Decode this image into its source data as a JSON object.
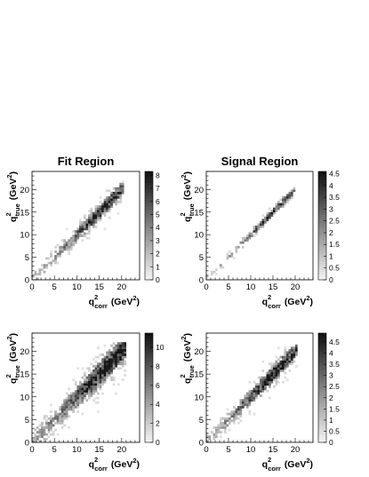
{
  "chart_data": [
    {
      "type": "heatmap",
      "title": "Fit Region",
      "xlabel": {
        "main": "q",
        "sub": "corr",
        "sup": "2",
        "unit_pre": "(GeV",
        "unit_sup": "2",
        "unit_post": ")"
      },
      "ylabel": {
        "main": "q",
        "sub": "true",
        "sup": "2",
        "unit_pre": "(GeV",
        "unit_sup": "2",
        "unit_post": ")"
      },
      "xlim": [
        0,
        24
      ],
      "ylim": [
        0,
        24
      ],
      "xticks": [
        0,
        5,
        10,
        15,
        20
      ],
      "yticks": [
        0,
        5,
        10,
        15,
        20
      ],
      "zlim": [
        0,
        8.3
      ],
      "zticks": [
        "0",
        "1",
        "2",
        "3",
        "4",
        "5",
        "6",
        "7",
        "8"
      ],
      "zvals": [
        0,
        1,
        2,
        3,
        4,
        5,
        6,
        7,
        8
      ],
      "grid": false,
      "distribution": {
        "diag_end": 20.5,
        "spread": 1.0,
        "tail": 0.18,
        "peak_at": 16,
        "density": 0.85
      }
    },
    {
      "type": "heatmap",
      "title": "Signal Region",
      "xlabel": {
        "main": "q",
        "sub": "corr",
        "sup": "2",
        "unit_pre": "(GeV",
        "unit_sup": "2",
        "unit_post": ")"
      },
      "ylabel": {
        "main": "q",
        "sub": "true",
        "sup": "2",
        "unit_pre": "(GeV",
        "unit_sup": "2",
        "unit_post": ")"
      },
      "xlim": [
        0,
        24
      ],
      "ylim": [
        0,
        24
      ],
      "xticks": [
        0,
        5,
        10,
        15,
        20
      ],
      "yticks": [
        0,
        5,
        10,
        15,
        20
      ],
      "zlim": [
        0,
        4.6
      ],
      "zticks": [
        "0",
        "0.5",
        "1",
        "1.5",
        "2",
        "2.5",
        "3",
        "3.5",
        "4",
        "4.5"
      ],
      "zvals": [
        0,
        0.5,
        1,
        1.5,
        2,
        2.5,
        3,
        3.5,
        4,
        4.5
      ],
      "grid": false,
      "distribution": {
        "diag_end": 20.0,
        "spread": 0.6,
        "tail": 0.08,
        "peak_at": 14,
        "density": 0.7
      }
    },
    {
      "type": "heatmap",
      "title": "",
      "xlabel": {
        "main": "q",
        "sub": "corr",
        "sup": "2",
        "unit_pre": "(GeV",
        "unit_sup": "2",
        "unit_post": ")"
      },
      "ylabel": {
        "main": "q",
        "sub": "true",
        "sup": "2",
        "unit_pre": "(GeV",
        "unit_sup": "2",
        "unit_post": ")"
      },
      "xlim": [
        0,
        24
      ],
      "ylim": [
        0,
        24
      ],
      "xticks": [
        0,
        5,
        10,
        15,
        20
      ],
      "yticks": [
        0,
        5,
        10,
        15,
        20
      ],
      "zlim": [
        0,
        11.5
      ],
      "zticks": [
        "0",
        "2",
        "4",
        "6",
        "8",
        "10"
      ],
      "zvals": [
        0,
        2,
        4,
        6,
        8,
        10
      ],
      "grid": false,
      "distribution": {
        "diag_end": 21.0,
        "spread": 1.5,
        "tail": 0.3,
        "peak_at": 17,
        "density": 1.0
      }
    },
    {
      "type": "heatmap",
      "title": "",
      "xlabel": {
        "main": "q",
        "sub": "corr",
        "sup": "2",
        "unit_pre": "(GeV",
        "unit_sup": "2",
        "unit_post": ")"
      },
      "ylabel": {
        "main": "q",
        "sub": "true",
        "sup": "2",
        "unit_pre": "(GeV",
        "unit_sup": "2",
        "unit_post": ")"
      },
      "xlim": [
        0,
        24
      ],
      "ylim": [
        0,
        24
      ],
      "xticks": [
        0,
        5,
        10,
        15,
        20
      ],
      "yticks": [
        0,
        5,
        10,
        15,
        20
      ],
      "zlim": [
        0,
        4.9
      ],
      "zticks": [
        "0",
        "0.5",
        "1",
        "1.5",
        "2",
        "2.5",
        "3",
        "3.5",
        "4",
        "4.5"
      ],
      "zvals": [
        0,
        0.5,
        1,
        1.5,
        2,
        2.5,
        3,
        3.5,
        4,
        4.5
      ],
      "grid": false,
      "distribution": {
        "diag_end": 20.5,
        "spread": 1.1,
        "tail": 0.2,
        "peak_at": 15,
        "density": 0.9
      }
    }
  ]
}
